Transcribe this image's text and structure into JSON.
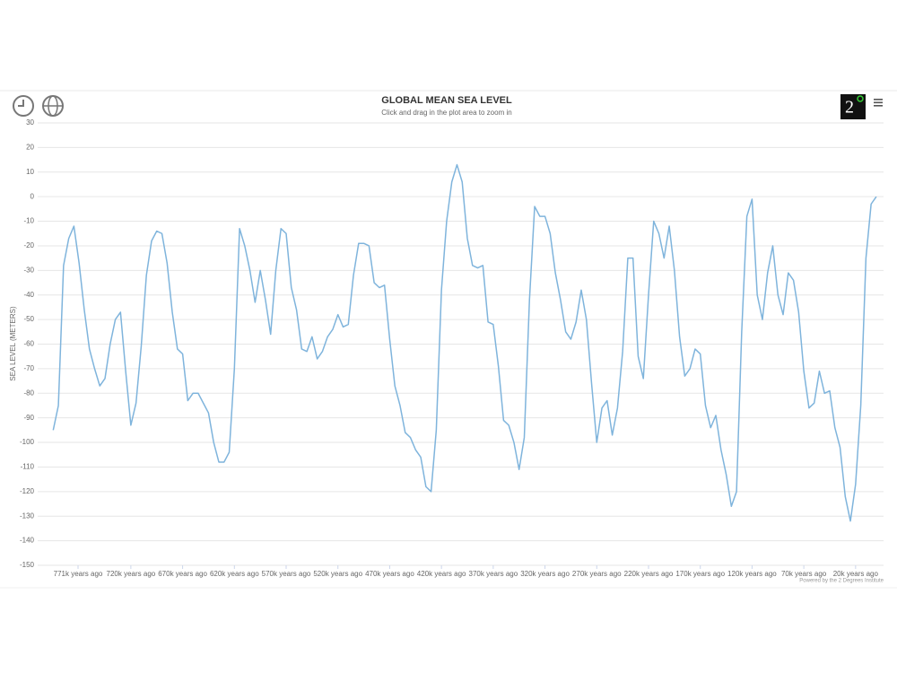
{
  "logo": {
    "text": "2"
  },
  "chart_data": {
    "type": "line",
    "title": "GLOBAL MEAN SEA LEVEL",
    "subtitle": "Click and drag in the plot area to zoom in",
    "y_label": "SEA LEVEL (METERS)",
    "credits": "Powered by the 2 Degrees Institute",
    "color": "#7fb4dc",
    "grid": true,
    "xlim": [
      810,
      -7
    ],
    "ylim": [
      -150,
      30
    ],
    "yticks": [
      30,
      20,
      10,
      0,
      -10,
      -20,
      -30,
      -40,
      -50,
      -60,
      -70,
      -80,
      -90,
      -100,
      -110,
      -120,
      -130,
      -140,
      -150
    ],
    "xticks": [
      {
        "value": 771,
        "label": "771k years ago"
      },
      {
        "value": 720,
        "label": "720k years ago"
      },
      {
        "value": 670,
        "label": "670k years ago"
      },
      {
        "value": 620,
        "label": "620k years ago"
      },
      {
        "value": 570,
        "label": "570k years ago"
      },
      {
        "value": 520,
        "label": "520k years ago"
      },
      {
        "value": 470,
        "label": "470k years ago"
      },
      {
        "value": 420,
        "label": "420k years ago"
      },
      {
        "value": 370,
        "label": "370k years ago"
      },
      {
        "value": 320,
        "label": "320k years ago"
      },
      {
        "value": 270,
        "label": "270k years ago"
      },
      {
        "value": 220,
        "label": "220k years ago"
      },
      {
        "value": 170,
        "label": "170k years ago"
      },
      {
        "value": 120,
        "label": "120k years ago"
      },
      {
        "value": 70,
        "label": "70k years ago"
      },
      {
        "value": 20,
        "label": "20k years ago"
      }
    ],
    "x": [
      795,
      790,
      785,
      780,
      775,
      770,
      765,
      760,
      755,
      750,
      745,
      740,
      735,
      730,
      725,
      720,
      715,
      710,
      705,
      700,
      695,
      690,
      685,
      680,
      675,
      670,
      665,
      660,
      655,
      650,
      645,
      640,
      635,
      630,
      625,
      620,
      615,
      610,
      605,
      600,
      595,
      590,
      585,
      580,
      575,
      570,
      565,
      560,
      555,
      550,
      545,
      540,
      535,
      530,
      525,
      520,
      515,
      510,
      505,
      500,
      495,
      490,
      485,
      480,
      475,
      470,
      465,
      460,
      455,
      450,
      445,
      440,
      435,
      430,
      425,
      420,
      415,
      410,
      405,
      400,
      395,
      390,
      385,
      380,
      375,
      370,
      365,
      360,
      355,
      350,
      345,
      340,
      335,
      330,
      325,
      320,
      315,
      310,
      305,
      300,
      295,
      290,
      285,
      280,
      275,
      270,
      265,
      260,
      255,
      250,
      245,
      240,
      235,
      230,
      225,
      220,
      215,
      210,
      205,
      200,
      195,
      190,
      185,
      180,
      175,
      170,
      165,
      160,
      155,
      150,
      145,
      140,
      135,
      130,
      125,
      120,
      115,
      110,
      105,
      100,
      95,
      90,
      85,
      80,
      75,
      70,
      65,
      60,
      55,
      50,
      45,
      40,
      35,
      30,
      25,
      20,
      15,
      10,
      5,
      0
    ],
    "values": [
      -95,
      -85,
      -28,
      -17,
      -12,
      -27,
      -46,
      -62,
      -70,
      -77,
      -74,
      -60,
      -50,
      -47,
      -71,
      -93,
      -84,
      -61,
      -32,
      -18,
      -14,
      -15,
      -27,
      -47,
      -62,
      -64,
      -83,
      -80,
      -80,
      -84,
      -88,
      -100,
      -108,
      -108,
      -104,
      -70,
      -13,
      -20,
      -30,
      -43,
      -30,
      -42,
      -56,
      -30,
      -13,
      -15,
      -37,
      -46,
      -62,
      -63,
      -57,
      -66,
      -63,
      -57,
      -54,
      -48,
      -53,
      -52,
      -32,
      -19,
      -19,
      -20,
      -35,
      -37,
      -36,
      -58,
      -77,
      -85,
      -96,
      -98,
      -103,
      -106,
      -118,
      -120,
      -95,
      -38,
      -10,
      6,
      13,
      6,
      -17,
      -28,
      -29,
      -28,
      -51,
      -52,
      -69,
      -91,
      -93,
      -100,
      -111,
      -98,
      -42,
      -4,
      -8,
      -8,
      -15,
      -31,
      -42,
      -55,
      -58,
      -51,
      -38,
      -50,
      -76,
      -100,
      -86,
      -83,
      -97,
      -86,
      -63,
      -25,
      -25,
      -65,
      -74,
      -40,
      -10,
      -15,
      -25,
      -12,
      -30,
      -57,
      -73,
      -70,
      -62,
      -64,
      -85,
      -94,
      -89,
      -103,
      -113,
      -126,
      -120,
      -55,
      -8,
      -1,
      -40,
      -50,
      -31,
      -20,
      -40,
      -48,
      -31,
      -34,
      -47,
      -71,
      -86,
      -84,
      -71,
      -80,
      -79,
      -94,
      -102,
      -122,
      -132,
      -117,
      -85,
      -25,
      -3,
      0
    ]
  }
}
